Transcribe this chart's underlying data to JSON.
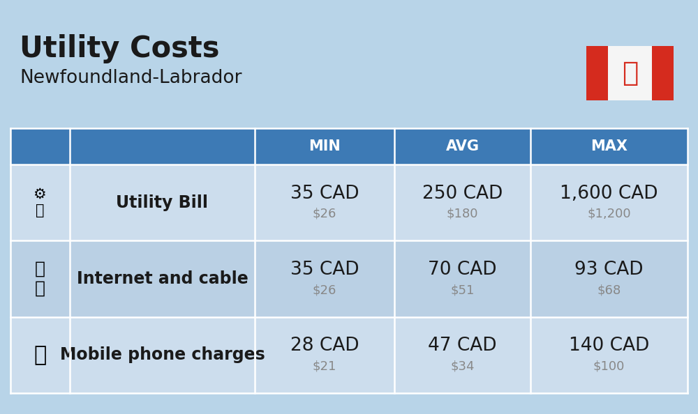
{
  "title": "Utility Costs",
  "subtitle": "Newfoundland-Labrador",
  "background_color": "#b8d4e8",
  "header_color": "#3d7ab5",
  "header_text_color": "#ffffff",
  "row_color_light": "#ccdded",
  "row_color_dark": "#bad0e4",
  "line_color": "#ffffff",
  "col_headers": [
    "MIN",
    "AVG",
    "MAX"
  ],
  "rows": [
    {
      "label": "Utility Bill",
      "min_cad": "35 CAD",
      "min_usd": "$26",
      "avg_cad": "250 CAD",
      "avg_usd": "$180",
      "max_cad": "1,600 CAD",
      "max_usd": "$1,200"
    },
    {
      "label": "Internet and cable",
      "min_cad": "35 CAD",
      "min_usd": "$26",
      "avg_cad": "70 CAD",
      "avg_usd": "$51",
      "max_cad": "93 CAD",
      "max_usd": "$68"
    },
    {
      "label": "Mobile phone charges",
      "min_cad": "28 CAD",
      "min_usd": "$21",
      "avg_cad": "47 CAD",
      "avg_usd": "$34",
      "max_cad": "140 CAD",
      "max_usd": "$100"
    }
  ],
  "title_fontsize": 30,
  "subtitle_fontsize": 19,
  "header_fontsize": 15,
  "cell_cad_fontsize": 19,
  "cell_usd_fontsize": 13,
  "label_fontsize": 17,
  "flag_red": "#d52b1e",
  "flag_white": "#f5f5f5"
}
